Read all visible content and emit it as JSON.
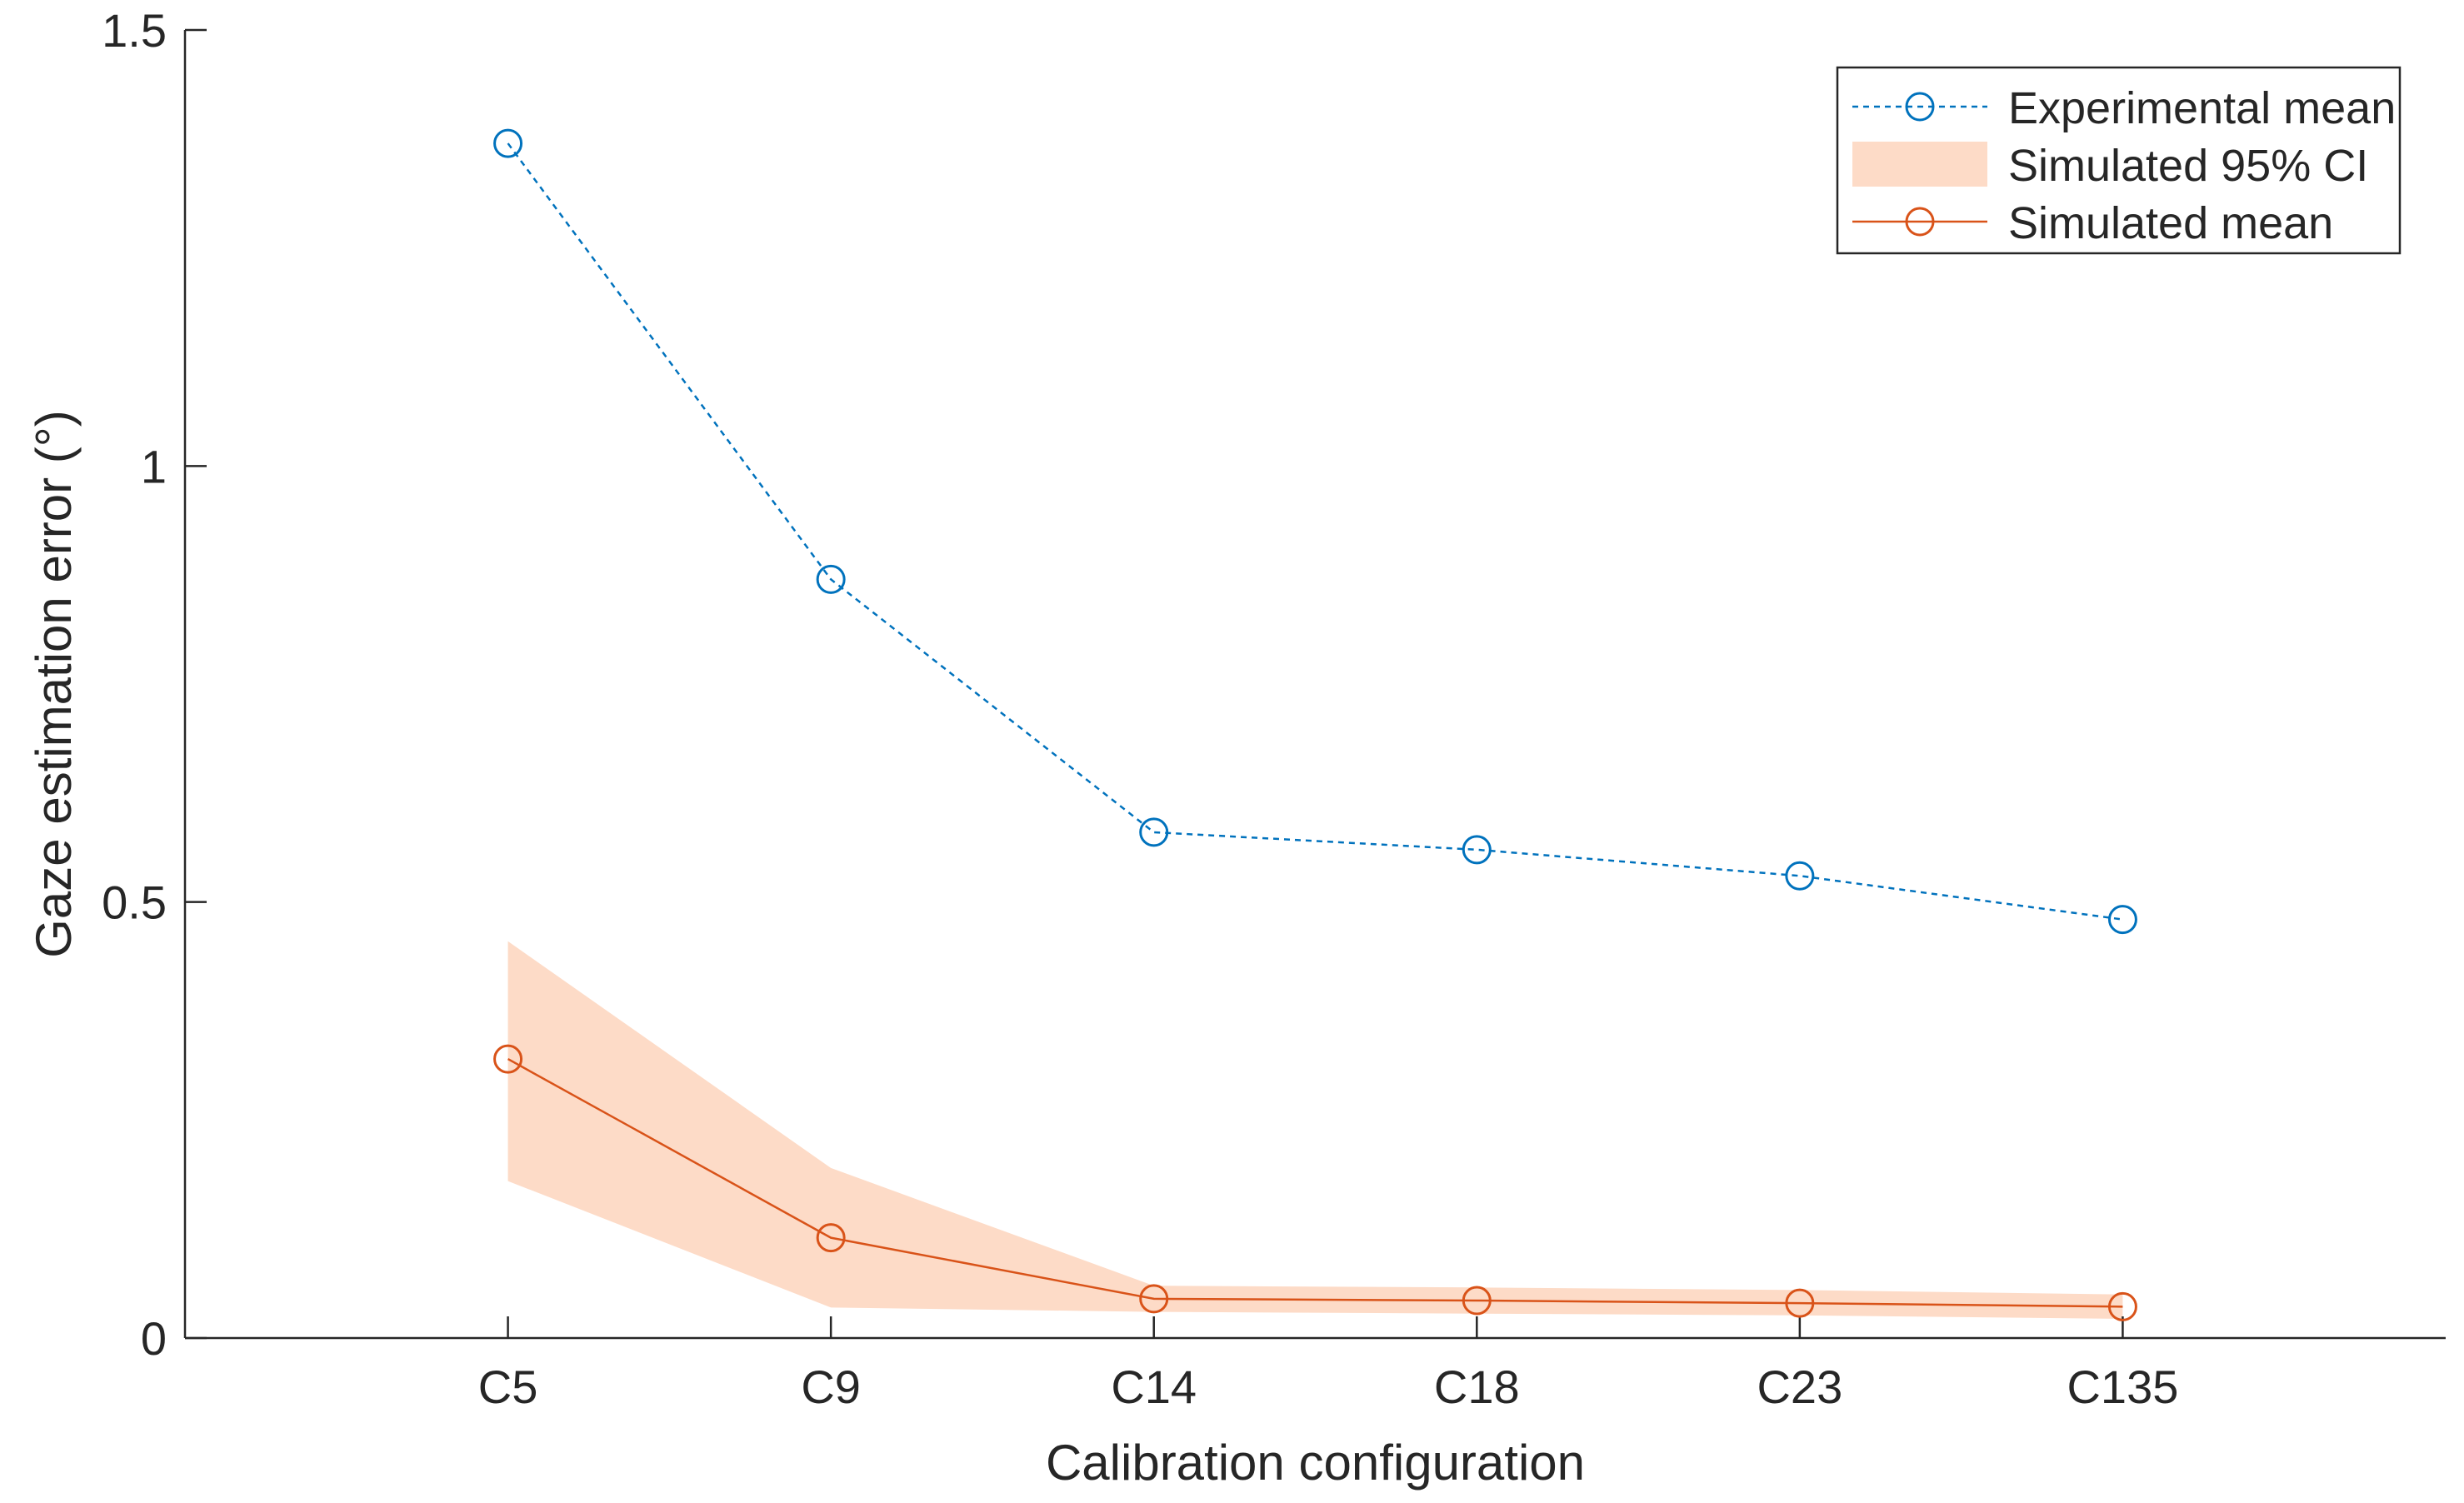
{
  "chart_data": {
    "type": "line",
    "title": "",
    "xlabel": "Calibration configuration",
    "ylabel": "Gaze estimation error (°)",
    "categories": [
      "C5",
      "C9",
      "C14",
      "C18",
      "C23",
      "C135"
    ],
    "xlim": [
      0,
      7
    ],
    "ylim": [
      0,
      1.5
    ],
    "yticks": [
      0,
      0.5,
      1,
      1.5
    ],
    "ytick_labels": [
      "0",
      "0.5",
      "1",
      "1.5"
    ],
    "grid": false,
    "legend_position": "top-right",
    "series": [
      {
        "name": "Experimental mean",
        "style": "dashed-circle",
        "color": "#0072BD",
        "values": [
          1.37,
          0.87,
          0.58,
          0.56,
          0.53,
          0.48
        ]
      },
      {
        "name": "Simulated 95% CI",
        "style": "band",
        "color": "#FDDBC7",
        "lower": [
          0.18,
          0.035,
          0.03,
          0.028,
          0.026,
          0.022
        ],
        "upper": [
          0.455,
          0.195,
          0.06,
          0.058,
          0.055,
          0.05
        ]
      },
      {
        "name": "Simulated mean",
        "style": "solid-circle",
        "color": "#D95319",
        "values": [
          0.32,
          0.115,
          0.045,
          0.043,
          0.04,
          0.036
        ]
      }
    ]
  }
}
